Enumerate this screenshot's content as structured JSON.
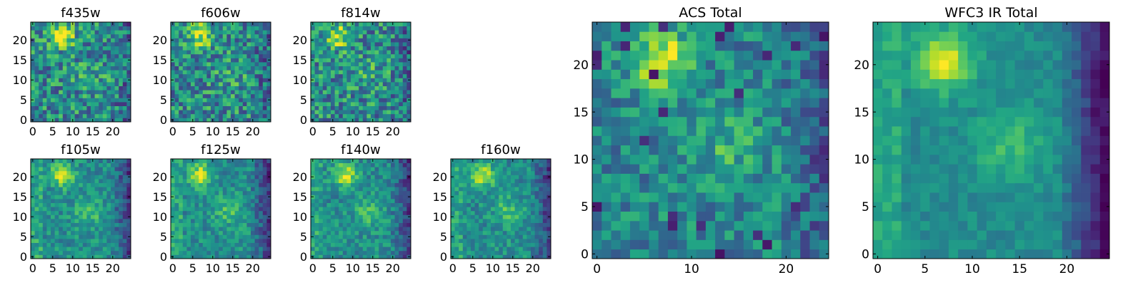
{
  "figure": {
    "panels": [
      {
        "title": "f435w",
        "seed": 11,
        "blob_x": 7.5,
        "blob_y": 21,
        "mode": "noisy"
      },
      {
        "title": "f606w",
        "seed": 23,
        "blob_x": 7,
        "blob_y": 21.2,
        "mode": "noisy"
      },
      {
        "title": "f814w",
        "seed": 37,
        "blob_x": 6.5,
        "blob_y": 21,
        "mode": "noisy"
      },
      {
        "title": "f105w",
        "seed": 41,
        "blob_x": 7.5,
        "blob_y": 20.5,
        "mode": "smooth"
      },
      {
        "title": "f125w",
        "seed": 53,
        "blob_x": 7,
        "blob_y": 20.5,
        "mode": "smooth"
      },
      {
        "title": "f140w",
        "seed": 67,
        "blob_x": 8,
        "blob_y": 20.5,
        "mode": "smooth"
      },
      {
        "title": "f160w",
        "seed": 79,
        "blob_x": 7.5,
        "blob_y": 20.5,
        "mode": "smooth"
      },
      {
        "title": "ACS Total",
        "seed": 97,
        "blob_x": 7,
        "blob_y": 20.5,
        "mode": "mid"
      },
      {
        "title": "WFC3 IR Total",
        "seed": 113,
        "blob_x": 7,
        "blob_y": 20.5,
        "mode": "ir"
      }
    ]
  },
  "chart_data": [
    {
      "type": "heatmap",
      "title": "f435w",
      "xlim": [
        0,
        25
      ],
      "ylim": [
        0,
        25
      ],
      "xticks": [
        0,
        5,
        10,
        15,
        20
      ],
      "yticks": [
        0,
        5,
        10,
        15,
        20
      ],
      "colormap": "viridis"
    },
    {
      "type": "heatmap",
      "title": "f606w",
      "xlim": [
        0,
        25
      ],
      "ylim": [
        0,
        25
      ],
      "xticks": [
        0,
        5,
        10,
        15,
        20
      ],
      "yticks": [
        0,
        5,
        10,
        15,
        20
      ],
      "colormap": "viridis"
    },
    {
      "type": "heatmap",
      "title": "f814w",
      "xlim": [
        0,
        25
      ],
      "ylim": [
        0,
        25
      ],
      "xticks": [
        0,
        5,
        10,
        15,
        20
      ],
      "yticks": [
        0,
        5,
        10,
        15,
        20
      ],
      "colormap": "viridis"
    },
    {
      "type": "heatmap",
      "title": "f105w",
      "xlim": [
        0,
        25
      ],
      "ylim": [
        0,
        25
      ],
      "xticks": [
        0,
        5,
        10,
        15,
        20
      ],
      "yticks": [
        0,
        5,
        10,
        15,
        20
      ],
      "colormap": "viridis"
    },
    {
      "type": "heatmap",
      "title": "f125w",
      "xlim": [
        0,
        25
      ],
      "ylim": [
        0,
        25
      ],
      "xticks": [
        0,
        5,
        10,
        15,
        20
      ],
      "yticks": [
        0,
        5,
        10,
        15,
        20
      ],
      "colormap": "viridis"
    },
    {
      "type": "heatmap",
      "title": "f140w",
      "xlim": [
        0,
        25
      ],
      "ylim": [
        0,
        25
      ],
      "xticks": [
        0,
        5,
        10,
        15,
        20
      ],
      "yticks": [
        0,
        5,
        10,
        15,
        20
      ],
      "colormap": "viridis"
    },
    {
      "type": "heatmap",
      "title": "f160w",
      "xlim": [
        0,
        25
      ],
      "ylim": [
        0,
        25
      ],
      "xticks": [
        0,
        5,
        10,
        15,
        20
      ],
      "yticks": [
        0,
        5,
        10,
        15,
        20
      ],
      "colormap": "viridis"
    },
    {
      "type": "heatmap",
      "title": "ACS Total",
      "xlim": [
        0,
        25
      ],
      "ylim": [
        0,
        25
      ],
      "xticks": [
        0,
        10,
        20
      ],
      "yticks": [
        0,
        5,
        10,
        15,
        20
      ],
      "colormap": "viridis"
    },
    {
      "type": "heatmap",
      "title": "WFC3 IR Total",
      "xlim": [
        0,
        25
      ],
      "ylim": [
        0,
        25
      ],
      "xticks": [
        0,
        5,
        10,
        15,
        20
      ],
      "yticks": [
        0,
        5,
        10,
        15,
        20
      ],
      "colormap": "viridis"
    }
  ]
}
